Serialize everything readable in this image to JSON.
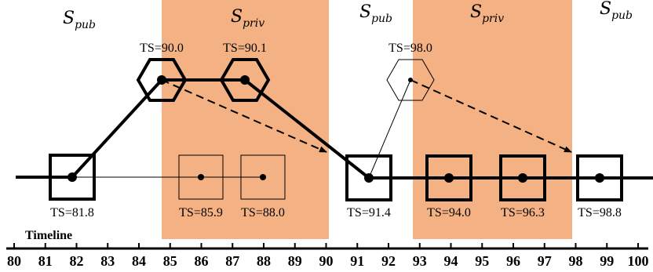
{
  "colors": {
    "private_zone": "#f3b184",
    "ink": "#000000"
  },
  "regions": [
    {
      "kind": "pub",
      "symbol": "S",
      "subscript": "pub"
    },
    {
      "kind": "priv",
      "symbol": "S",
      "subscript": "priv"
    },
    {
      "kind": "pub",
      "symbol": "S",
      "subscript": "pub"
    },
    {
      "kind": "priv",
      "symbol": "S",
      "subscript": "priv"
    },
    {
      "kind": "pub",
      "symbol": "S",
      "subscript": "pub"
    }
  ],
  "timeline": {
    "title": "Timeline",
    "ticks": [
      "80",
      "81",
      "82",
      "83",
      "84",
      "85",
      "86",
      "87",
      "88",
      "89",
      "90",
      "91",
      "92",
      "93",
      "94",
      "95",
      "96",
      "97",
      "98",
      "99",
      "100"
    ]
  },
  "hexagons": [
    {
      "label": "TS=90.0",
      "weight": "bold"
    },
    {
      "label": "TS=90.1",
      "weight": "bold"
    },
    {
      "label": "TS=98.0",
      "weight": "thin"
    }
  ],
  "squares": [
    {
      "label": "TS=81.8",
      "weight": "bold"
    },
    {
      "label": "TS=85.9",
      "weight": "thin"
    },
    {
      "label": "TS=88.0",
      "weight": "thin"
    },
    {
      "label": "TS=91.4",
      "weight": "bold"
    },
    {
      "label": "TS=94.0",
      "weight": "bold"
    },
    {
      "label": "TS=96.3",
      "weight": "bold"
    },
    {
      "label": "TS=98.8",
      "weight": "bold"
    }
  ]
}
